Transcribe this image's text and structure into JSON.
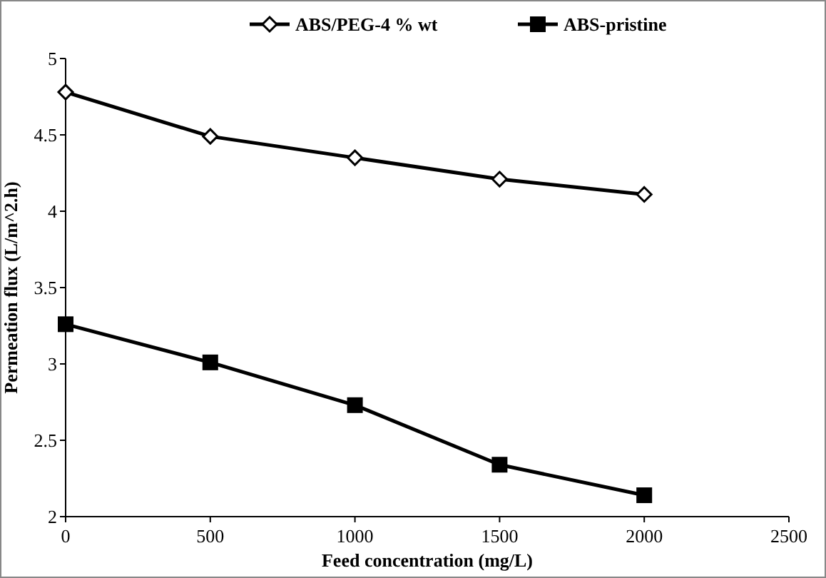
{
  "chart_data": {
    "type": "line",
    "xlabel": "Feed concentration (mg/L)",
    "ylabel": "Permeation flux (L/m^2.h)",
    "x": [
      0,
      500,
      1000,
      1500,
      2000
    ],
    "series": [
      {
        "name": "ABS/PEG-4 % wt",
        "color": "#000000",
        "marker": "diamond",
        "values": [
          4.78,
          4.49,
          4.35,
          4.21,
          4.11
        ]
      },
      {
        "name": "ABS-pristine",
        "color": "#000000",
        "marker": "square",
        "values": [
          3.26,
          3.01,
          2.73,
          2.34,
          2.14
        ]
      }
    ],
    "xlim": [
      0,
      2500
    ],
    "xticks": [
      0,
      500,
      1000,
      1500,
      2000,
      2500
    ],
    "ylim": [
      2,
      5
    ],
    "yticks": [
      2,
      2.5,
      3,
      3.5,
      4,
      4.5,
      5
    ],
    "grid": false,
    "legend": "top"
  }
}
